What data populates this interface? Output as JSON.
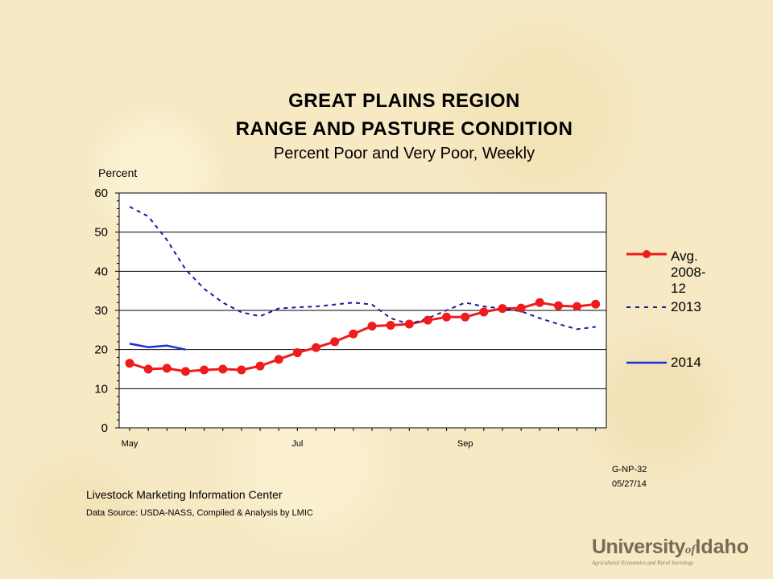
{
  "header": {
    "title_line1": "GREAT PLAINS REGION",
    "title_line2": "RANGE AND PASTURE CONDITION",
    "subtitle": "Percent Poor and Very Poor, Weekly"
  },
  "footer": {
    "chart_code": "G-NP-32",
    "chart_date": "05/27/14",
    "organization": "Livestock Marketing Information  Center",
    "source": "Data Source:  USDA-NASS, Compiled & Analysis by LMIC"
  },
  "logo": {
    "part1": "University",
    "part_of": "of",
    "part2": "Idaho",
    "tagline": "Agricultural Economics and Rural Sociology"
  },
  "legend": {
    "avg_label_lines": [
      "Avg.",
      "2008-",
      "12"
    ],
    "label_2013": "2013",
    "label_2014": "2014"
  },
  "chart_data": {
    "type": "line",
    "ylabel": "Percent",
    "xlabel": "",
    "ylim": [
      0,
      60
    ],
    "yticks": [
      0,
      10,
      20,
      30,
      40,
      50,
      60
    ],
    "xlim_weeks": [
      0,
      25.2
    ],
    "x_tick_labels": [
      {
        "label": "May",
        "week": 0
      },
      {
        "label": "Jul",
        "week": 9
      },
      {
        "label": "Sep",
        "week": 18
      }
    ],
    "grid": "horizontal",
    "legend_position": "right",
    "series": [
      {
        "name": "Avg. 2008-12",
        "color": "#ee1c1c",
        "style": "solid-markers",
        "values": [
          16.5,
          15.0,
          15.2,
          14.4,
          14.8,
          15.0,
          14.8,
          15.8,
          17.5,
          19.2,
          20.5,
          22.0,
          24.0,
          26.0,
          26.2,
          26.5,
          27.5,
          28.3,
          28.3,
          29.6,
          30.5,
          30.6,
          32.0,
          31.2,
          31.0,
          31.6
        ]
      },
      {
        "name": "2013",
        "color": "#1a1aa0",
        "style": "dashed",
        "values": [
          56.5,
          54.0,
          48.0,
          40.5,
          35.5,
          32.0,
          29.5,
          28.5,
          30.5,
          30.8,
          31.0,
          31.5,
          32.0,
          31.5,
          28.0,
          26.5,
          28.0,
          30.0,
          32.0,
          31.0,
          30.5,
          29.8,
          28.0,
          26.5,
          25.2,
          25.8
        ]
      },
      {
        "name": "2014",
        "color": "#1a2ed6",
        "style": "solid",
        "values": [
          21.5,
          20.6,
          21.0,
          20.0
        ]
      }
    ]
  }
}
